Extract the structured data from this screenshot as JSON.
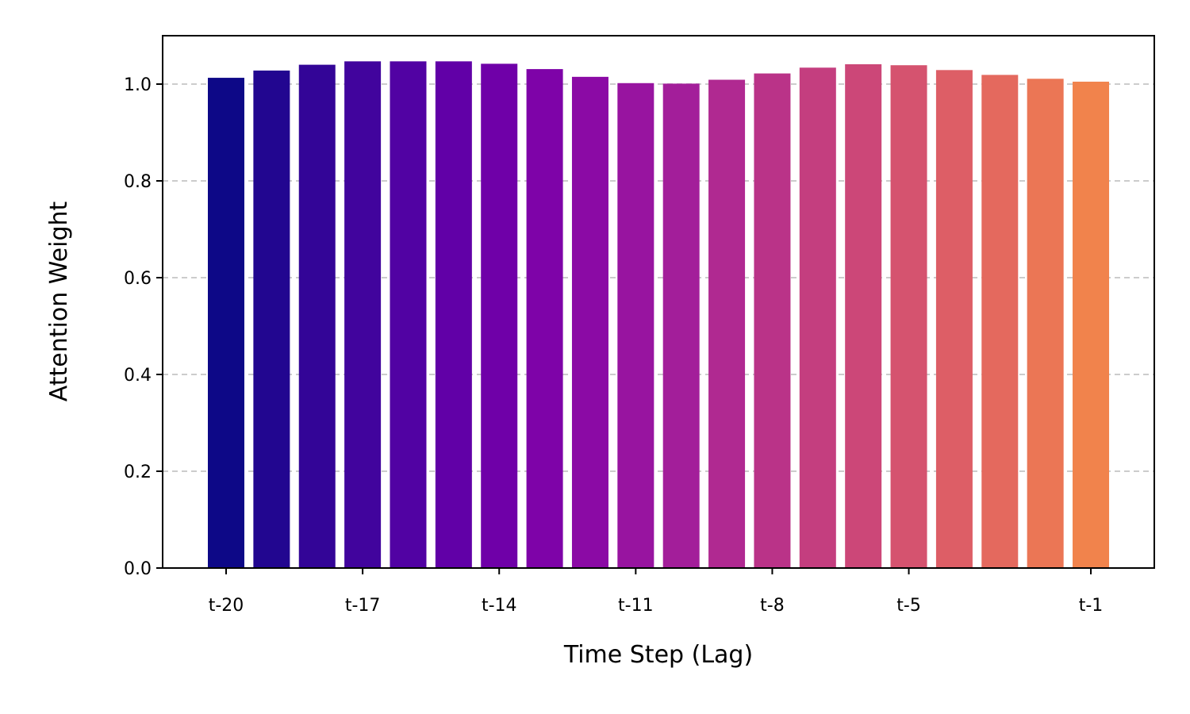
{
  "chart_data": {
    "type": "bar",
    "title": "",
    "xlabel": "Time Step (Lag)",
    "ylabel": "Attention Weight",
    "categories": [
      "t-20",
      "t-19",
      "t-18",
      "t-17",
      "t-16",
      "t-15",
      "t-14",
      "t-13",
      "t-12",
      "t-11",
      "t-10",
      "t-9",
      "t-8",
      "t-7",
      "t-6",
      "t-5",
      "t-4",
      "t-3",
      "t-2",
      "t-1"
    ],
    "values": [
      1.013,
      1.028,
      1.04,
      1.047,
      1.047,
      1.047,
      1.042,
      1.031,
      1.015,
      1.002,
      1.001,
      1.009,
      1.022,
      1.034,
      1.041,
      1.039,
      1.029,
      1.019,
      1.011,
      1.005
    ],
    "colors": [
      "#0d0887",
      "#220690",
      "#330597",
      "#41049d",
      "#5102a3",
      "#6100a7",
      "#6f00a8",
      "#7e03a8",
      "#8b0aa5",
      "#9814a0",
      "#a31e9a",
      "#b02991",
      "#ba3388",
      "#c43e7f",
      "#cc4778",
      "#d5536f",
      "#dd5e66",
      "#e4695e",
      "#eb7655",
      "#f1834c"
    ],
    "x_tick_labels": [
      "t-20",
      "t-17",
      "t-14",
      "t-11",
      "t-8",
      "t-5",
      "t-1"
    ],
    "y_ticks": [
      0.0,
      0.2,
      0.4,
      0.6,
      0.8,
      1.0
    ],
    "y_tick_labels": [
      "0.0",
      "0.2",
      "0.4",
      "0.6",
      "0.8",
      "1.0"
    ],
    "ylim": [
      0,
      1.1
    ],
    "grid": "y dashed",
    "legend": "none"
  }
}
